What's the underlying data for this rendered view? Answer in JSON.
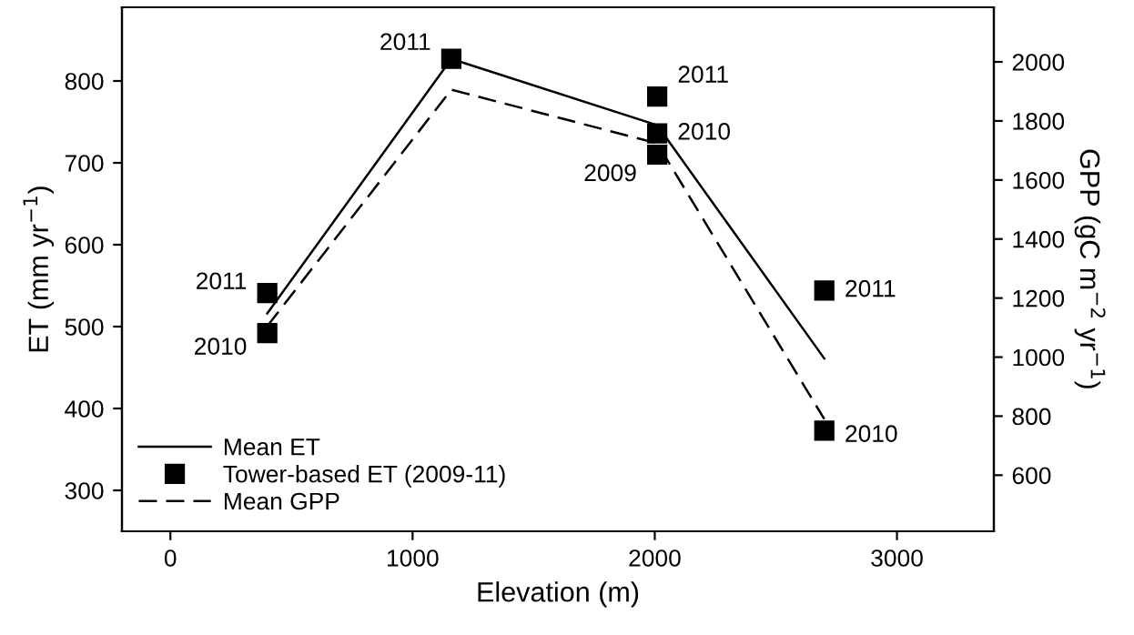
{
  "chart_data": {
    "type": "line",
    "xlabel": "Elevation (m)",
    "ylabel": "ET (mm yr$^{−1}$)",
    "y2label": "GPP (gC m$^{−2}$ yr$^{−1}$)",
    "xlim": [
      -200,
      3400
    ],
    "xticks": [
      0,
      1000,
      2000,
      3000
    ],
    "ylim": [
      250,
      890
    ],
    "yticks": [
      300,
      400,
      500,
      600,
      700,
      800
    ],
    "y2lim": [
      410,
      2185
    ],
    "y2ticks": [
      600,
      800,
      1000,
      1200,
      1400,
      1600,
      1800,
      2000
    ],
    "series": [
      {
        "name": "Mean ET",
        "color": "#000000",
        "line_style": "solid",
        "marker": "none",
        "x": [
          400,
          1160,
          2010,
          2700
        ],
        "values": [
          516,
          827,
          746,
          461
        ]
      },
      {
        "name": "Tower-based ET (2009-11)",
        "type": "scatter",
        "color": "#000000",
        "marker": "square",
        "x": [
          400,
          400,
          1160,
          2010,
          2010,
          2010,
          2700,
          2700
        ],
        "values": [
          541,
          492,
          827,
          781,
          736,
          710,
          544,
          373
        ]
      },
      {
        "name": "Mean GPP",
        "axis": "y2",
        "color": "#000000",
        "line_style": "dashed",
        "marker": "none",
        "x": [
          400,
          1160,
          2010,
          2700
        ],
        "values": [
          1105,
          1906,
          1724,
          790
        ]
      }
    ],
    "annotations": [
      {
        "text": "2011",
        "x": 400,
        "y": 541
      },
      {
        "text": "2010",
        "x": 400,
        "y": 492
      },
      {
        "text": "2011",
        "x": 1160,
        "y": 827
      },
      {
        "text": "2011",
        "x": 2010,
        "y": 781
      },
      {
        "text": "2010",
        "x": 2010,
        "y": 736
      },
      {
        "text": "2009",
        "x": 2010,
        "y": 710
      },
      {
        "text": "2011",
        "x": 2700,
        "y": 544
      },
      {
        "text": "2010",
        "x": 2700,
        "y": 373
      }
    ],
    "legend": "bottom left",
    "grid": false
  }
}
